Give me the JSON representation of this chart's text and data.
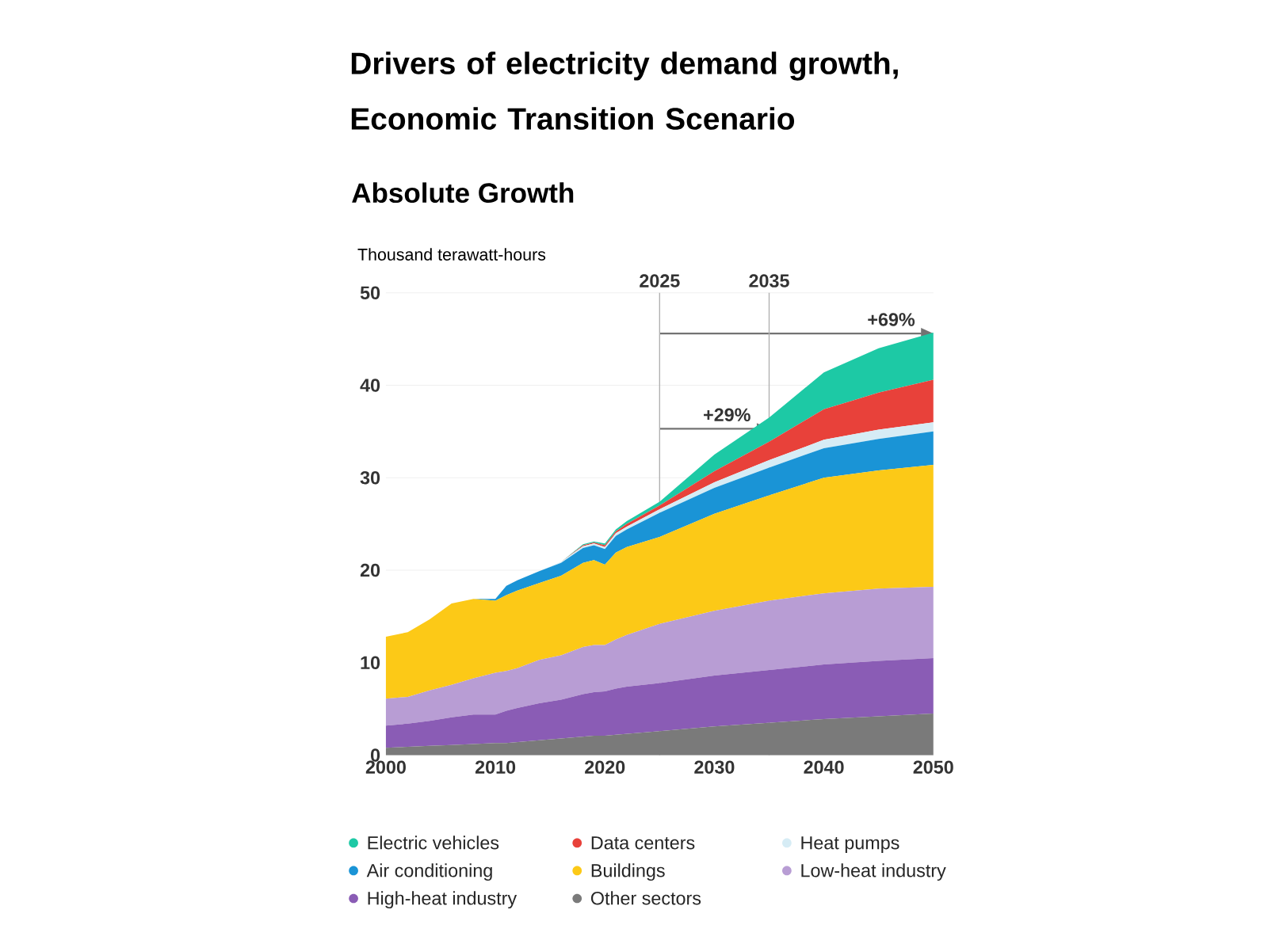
{
  "chart_data": {
    "type": "area",
    "stacked": true,
    "title": "Drivers of electricity demand growth,\nEconomic Transition Scenario",
    "subtitle": "Absolute Growth",
    "ylabel": "Thousand terawatt-hours",
    "x": [
      2000,
      2002,
      2004,
      2006,
      2008,
      2010,
      2011,
      2012,
      2014,
      2016,
      2018,
      2019,
      2020,
      2021,
      2022,
      2025,
      2030,
      2035,
      2040,
      2045,
      2050
    ],
    "series": [
      {
        "name": "Other sectors",
        "color": "#7a7a7a",
        "values": [
          0.8,
          0.9,
          1.0,
          1.1,
          1.2,
          1.3,
          1.3,
          1.4,
          1.6,
          1.8,
          2.0,
          2.1,
          2.1,
          2.2,
          2.3,
          2.6,
          3.1,
          3.5,
          3.9,
          4.2,
          4.5
        ]
      },
      {
        "name": "High-heat industry",
        "color": "#8a5cb5",
        "values": [
          2.4,
          2.5,
          2.7,
          3.0,
          3.2,
          3.1,
          3.5,
          3.7,
          4.0,
          4.2,
          4.6,
          4.7,
          4.8,
          5.0,
          5.1,
          5.2,
          5.5,
          5.7,
          5.9,
          6.0,
          6.0
        ]
      },
      {
        "name": "Low-heat industry",
        "color": "#b89dd4",
        "values": [
          2.9,
          2.9,
          3.3,
          3.5,
          3.9,
          4.5,
          4.3,
          4.3,
          4.7,
          4.8,
          5.1,
          5.1,
          5.0,
          5.3,
          5.6,
          6.4,
          7.0,
          7.5,
          7.7,
          7.8,
          7.7
        ]
      },
      {
        "name": "Buildings",
        "color": "#fcc917",
        "values": [
          6.7,
          7.0,
          7.7,
          8.8,
          8.6,
          7.8,
          8.2,
          8.4,
          8.3,
          8.6,
          9.1,
          9.2,
          8.7,
          9.4,
          9.5,
          9.4,
          10.5,
          11.4,
          12.5,
          12.8,
          13.2
        ]
      },
      {
        "name": "Air conditioning",
        "color": "#1a94d6",
        "values": [
          0,
          0,
          0,
          0,
          0,
          0.2,
          1.0,
          1.1,
          1.3,
          1.4,
          1.6,
          1.6,
          1.7,
          1.8,
          1.9,
          2.6,
          2.8,
          3.0,
          3.2,
          3.4,
          3.6
        ]
      },
      {
        "name": "Heat pumps",
        "color": "#d6ecf5",
        "values": [
          0,
          0,
          0,
          0,
          0,
          0,
          0,
          0,
          0,
          0.1,
          0.2,
          0.2,
          0.2,
          0.3,
          0.3,
          0.4,
          0.6,
          0.8,
          0.9,
          1.0,
          1.0
        ]
      },
      {
        "name": "Data centers",
        "color": "#e8413a",
        "values": [
          0,
          0,
          0,
          0,
          0,
          0,
          0,
          0,
          0,
          0,
          0.1,
          0.1,
          0.2,
          0.2,
          0.3,
          0.4,
          1.2,
          2.0,
          3.3,
          4.0,
          4.6
        ]
      },
      {
        "name": "Electric vehicles",
        "color": "#1dc9a5",
        "values": [
          0,
          0,
          0,
          0,
          0,
          0,
          0,
          0,
          0,
          0,
          0.1,
          0.1,
          0.2,
          0.2,
          0.3,
          0.4,
          1.8,
          2.6,
          4.0,
          4.8,
          5.1
        ]
      }
    ],
    "xlim": [
      2000,
      2050
    ],
    "ylim": [
      0,
      50
    ],
    "xticks": [
      2000,
      2010,
      2020,
      2030,
      2040,
      2050
    ],
    "yticks": [
      0,
      10,
      20,
      30,
      40,
      50
    ],
    "grid": "y",
    "legend": "bottom",
    "ref_lines": [
      {
        "axis": "x",
        "value": 2025,
        "label": "2025",
        "color": "#b0b0b0"
      },
      {
        "axis": "x",
        "value": 2035,
        "label": "2035",
        "color": "#b0b0b0"
      }
    ],
    "annotations": [
      {
        "text": "+29%",
        "x": 2035,
        "y": 35.3
      },
      {
        "text": "+69%",
        "x": 2050,
        "y": 45.6
      }
    ]
  }
}
